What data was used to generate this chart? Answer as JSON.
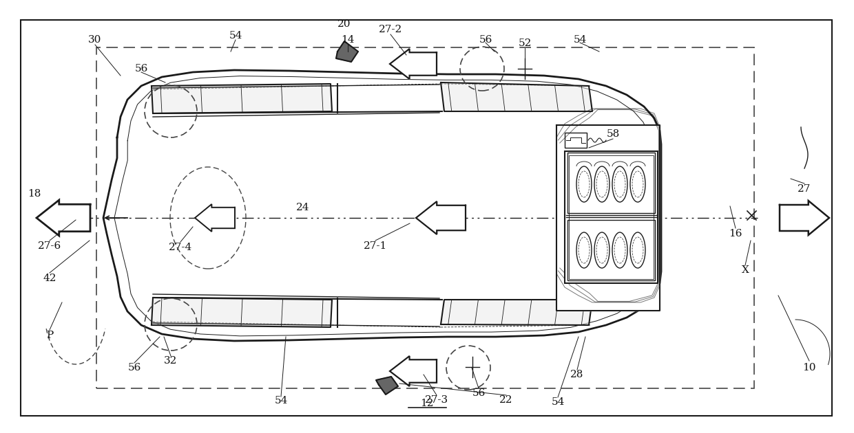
{
  "bg_color": "#ffffff",
  "lc": "#1a1a1a",
  "dc": "#444444",
  "fig_width": 12.4,
  "fig_height": 6.3
}
